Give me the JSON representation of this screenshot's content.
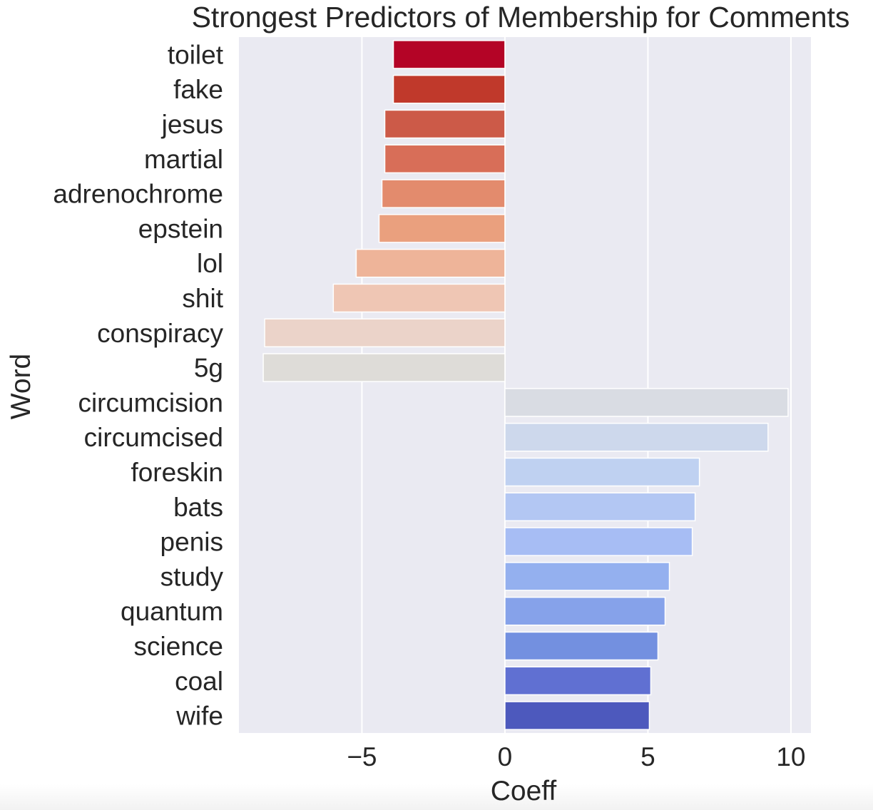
{
  "chart_data": {
    "type": "bar",
    "orientation": "horizontal",
    "title": "Strongest Predictors of Membership for Comments",
    "xlabel": "Coeff",
    "ylabel": "Word",
    "categories": [
      "toilet",
      "fake",
      "jesus",
      "martial",
      "adrenochrome",
      "epstein",
      "lol",
      "shit",
      "conspiracy",
      "5g",
      "circumcision",
      "circumcised",
      "foreskin",
      "bats",
      "penis",
      "study",
      "quantum",
      "science",
      "coal",
      "wife"
    ],
    "values": [
      -3.9,
      -3.9,
      -4.2,
      -4.2,
      -4.3,
      -4.4,
      -5.2,
      -6.0,
      -8.4,
      -8.45,
      9.9,
      9.2,
      6.8,
      6.65,
      6.55,
      5.75,
      5.6,
      5.35,
      5.1,
      5.05
    ],
    "colors": [
      "#b40426",
      "#c0392b",
      "#cc5a48",
      "#d86e58",
      "#e38b6d",
      "#eaa07e",
      "#eeb499",
      "#efc6b4",
      "#ebd3c9",
      "#dedcd8",
      "#d9dce3",
      "#cdd8ec",
      "#bfd1f1",
      "#b3c7f3",
      "#a7bdf4",
      "#94b0ef",
      "#86a2ea",
      "#7390e0",
      "#6070d2",
      "#4d59bd"
    ],
    "xticks": [
      -5,
      0,
      5,
      10
    ],
    "xtick_labels": [
      "−5",
      "0",
      "5",
      "10"
    ],
    "xlim": [
      -9.3,
      10.7
    ],
    "grid": true,
    "style": "seaborn-darkgrid",
    "background_color": "#eaeaf2",
    "grid_color": "#ffffff"
  }
}
